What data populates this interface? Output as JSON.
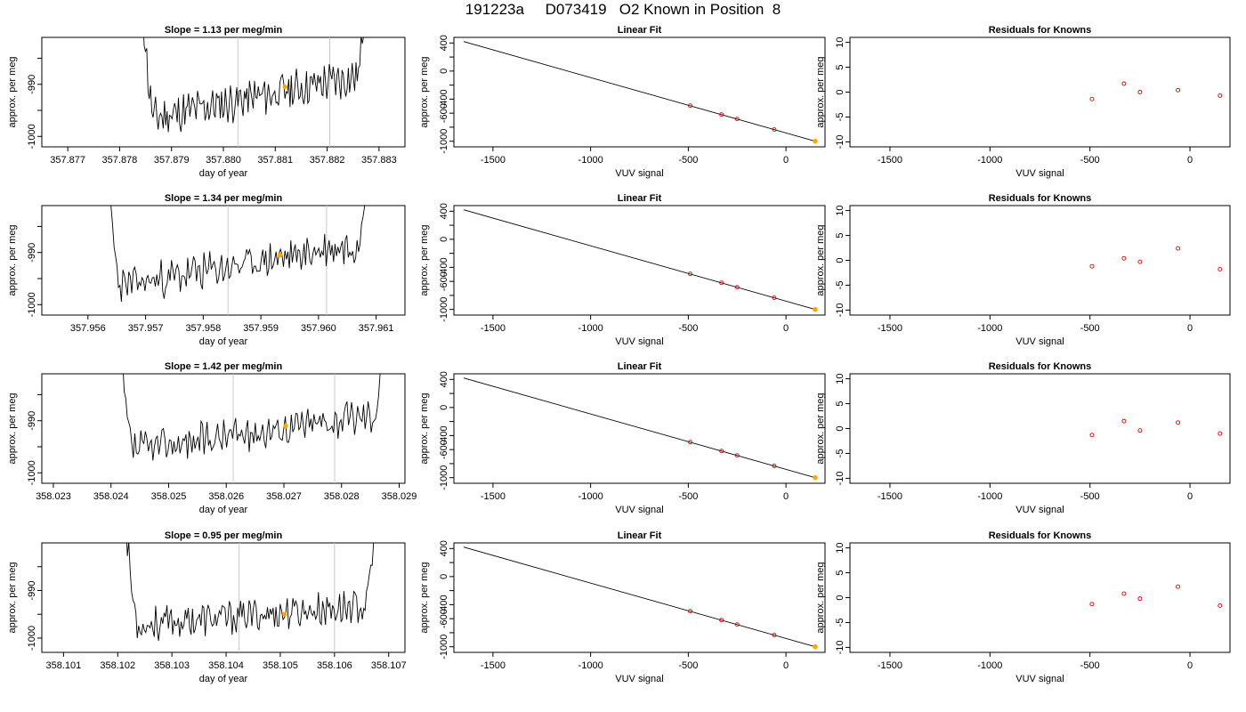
{
  "figure_title": "191223a     D073419   O2 Known in Position  8",
  "colors": {
    "trace": "#000000",
    "marker": "#ffa500",
    "residual": "#cc0000",
    "window_line": "#c8c8c8",
    "fit_line": "#000000"
  },
  "chart_data": [
    {
      "type": "line",
      "panel": "time-series",
      "row": 1,
      "title": "Slope =  1.13  per meg/min",
      "xlabel": "day of year",
      "ylabel": "approx. per meg",
      "xlim": [
        357.8765,
        357.8835
      ],
      "ylim": [
        -1002,
        -981
      ],
      "xticks": [
        357.877,
        357.878,
        357.879,
        357.88,
        357.881,
        357.882,
        357.883
      ],
      "xtick_labels": [
        "357.877",
        "357.878",
        "357.879",
        "357.880",
        "357.881",
        "357.882",
        "357.883"
      ],
      "yticks": [
        -1000,
        -995,
        -990,
        -985
      ],
      "ytick_labels": [
        "-1000",
        "",
        "-990",
        ""
      ],
      "series_x_range": [
        357.8784,
        357.8828
      ],
      "window_lines": [
        357.88028,
        357.88205
      ],
      "marker": [
        357.88119,
        -990.5
      ],
      "noise": {
        "start": -997,
        "end": -988,
        "amp": 3.2,
        "seed": 11
      }
    },
    {
      "type": "line",
      "panel": "linear-fit",
      "row": 1,
      "title": "Linear Fit",
      "xlabel": "VUV signal",
      "ylabel": "approx. per meg",
      "xlim": [
        -1700,
        200
      ],
      "ylim": [
        -1080,
        480
      ],
      "xticks": [
        -1500,
        -1000,
        -500,
        0
      ],
      "xtick_labels": [
        "-1500",
        "-1000",
        "-500",
        "0"
      ],
      "yticks": [
        -1000,
        -800,
        -600,
        -400,
        -200,
        0,
        200,
        400
      ],
      "ytick_labels": [
        "-1000",
        "",
        "-600",
        "-400",
        "",
        "0",
        "",
        "400"
      ],
      "fit_line": {
        "x": [
          -1650,
          150
        ],
        "y": [
          420,
          -1000
        ]
      },
      "points": {
        "x": [
          -490,
          -330,
          -250,
          -60,
          150
        ],
        "y": [
          -493,
          -620,
          -683,
          -833,
          -1000
        ]
      },
      "marker": [
        150,
        -1000
      ]
    },
    {
      "type": "scatter",
      "panel": "residuals",
      "row": 1,
      "title": "Residuals for Knowns",
      "xlabel": "VUV signal",
      "ylabel": "approx. per meg",
      "xlim": [
        -1700,
        200
      ],
      "ylim": [
        -11,
        11
      ],
      "xticks": [
        -1500,
        -1000,
        -500,
        0
      ],
      "xtick_labels": [
        "-1500",
        "-1000",
        "-500",
        "0"
      ],
      "yticks": [
        -10,
        -5,
        0,
        5,
        10
      ],
      "ytick_labels": [
        "-10",
        "-5",
        "0",
        "5",
        "10"
      ],
      "points": {
        "x": [
          -490,
          -330,
          -250,
          -60,
          150
        ],
        "y": [
          -1.4,
          1.7,
          0.0,
          0.4,
          -0.7
        ]
      }
    },
    {
      "type": "line",
      "panel": "time-series",
      "row": 2,
      "title": "Slope =  1.34  per meg/min",
      "xlabel": "day of year",
      "ylabel": "approx. per meg",
      "xlim": [
        357.9552,
        357.9615
      ],
      "ylim": [
        -1002,
        -981
      ],
      "xticks": [
        357.956,
        357.957,
        357.958,
        357.959,
        357.96,
        357.961
      ],
      "xtick_labels": [
        "357.956",
        "357.957",
        "357.958",
        "357.959",
        "357.960",
        "357.961"
      ],
      "yticks": [
        -1000,
        -995,
        -990,
        -985
      ],
      "ytick_labels": [
        "-1000",
        "",
        "-990",
        ""
      ],
      "series_x_range": [
        357.9563,
        357.9609
      ],
      "window_lines": [
        357.95843,
        357.96014
      ],
      "marker": [
        357.95933,
        -990.5
      ],
      "noise": {
        "start": -997,
        "end": -988,
        "amp": 3.0,
        "seed": 23
      }
    },
    {
      "type": "line",
      "panel": "linear-fit",
      "row": 2,
      "title": "Linear Fit",
      "xlabel": "VUV signal",
      "ylabel": "approx. per meg",
      "xlim": [
        -1700,
        200
      ],
      "ylim": [
        -1080,
        480
      ],
      "xticks": [
        -1500,
        -1000,
        -500,
        0
      ],
      "xtick_labels": [
        "-1500",
        "-1000",
        "-500",
        "0"
      ],
      "yticks": [
        -1000,
        -800,
        -600,
        -400,
        -200,
        0,
        200,
        400
      ],
      "ytick_labels": [
        "-1000",
        "",
        "-600",
        "-400",
        "",
        "0",
        "",
        "400"
      ],
      "fit_line": {
        "x": [
          -1650,
          150
        ],
        "y": [
          420,
          -1000
        ]
      },
      "points": {
        "x": [
          -490,
          -330,
          -250,
          -60,
          150
        ],
        "y": [
          -493,
          -620,
          -683,
          -833,
          -1000
        ]
      },
      "marker": [
        150,
        -1000
      ]
    },
    {
      "type": "scatter",
      "panel": "residuals",
      "row": 2,
      "title": "Residuals for Knowns",
      "xlabel": "VUV signal",
      "ylabel": "approx. per meg",
      "xlim": [
        -1700,
        200
      ],
      "ylim": [
        -11,
        11
      ],
      "xticks": [
        -1500,
        -1000,
        -500,
        0
      ],
      "xtick_labels": [
        "-1500",
        "-1000",
        "-500",
        "0"
      ],
      "yticks": [
        -10,
        -5,
        0,
        5,
        10
      ],
      "ytick_labels": [
        "-10",
        "-5",
        "0",
        "5",
        "10"
      ],
      "points": {
        "x": [
          -490,
          -330,
          -250,
          -60,
          150
        ],
        "y": [
          -1.2,
          0.4,
          -0.3,
          2.4,
          -1.8
        ]
      }
    },
    {
      "type": "line",
      "panel": "time-series",
      "row": 3,
      "title": "Slope =  1.42  per meg/min",
      "xlabel": "day of year",
      "ylabel": "approx. per meg",
      "xlim": [
        358.0228,
        358.0291
      ],
      "ylim": [
        -1002,
        -981
      ],
      "xticks": [
        358.023,
        358.024,
        358.025,
        358.026,
        358.027,
        358.028,
        358.029
      ],
      "xtick_labels": [
        "358.023",
        "358.024",
        "358.025",
        "358.026",
        "358.027",
        "358.028",
        "358.029"
      ],
      "yticks": [
        -1000,
        -995,
        -990,
        -985
      ],
      "ytick_labels": [
        "-1000",
        "",
        "-990",
        ""
      ],
      "series_x_range": [
        358.0241,
        358.0288
      ],
      "window_lines": [
        358.02612,
        358.02788
      ],
      "marker": [
        358.02703,
        -991
      ],
      "noise": {
        "start": -996,
        "end": -988.5,
        "amp": 2.8,
        "seed": 37
      }
    },
    {
      "type": "line",
      "panel": "linear-fit",
      "row": 3,
      "title": "Linear Fit",
      "xlabel": "VUV signal",
      "ylabel": "approx. per meg",
      "xlim": [
        -1700,
        200
      ],
      "ylim": [
        -1080,
        480
      ],
      "xticks": [
        -1500,
        -1000,
        -500,
        0
      ],
      "xtick_labels": [
        "-1500",
        "-1000",
        "-500",
        "0"
      ],
      "yticks": [
        -1000,
        -800,
        -600,
        -400,
        -200,
        0,
        200,
        400
      ],
      "ytick_labels": [
        "-1000",
        "",
        "-600",
        "-400",
        "",
        "0",
        "",
        "400"
      ],
      "fit_line": {
        "x": [
          -1650,
          150
        ],
        "y": [
          420,
          -1000
        ]
      },
      "points": {
        "x": [
          -490,
          -330,
          -250,
          -60,
          150
        ],
        "y": [
          -493,
          -620,
          -683,
          -833,
          -1000
        ]
      },
      "marker": [
        150,
        -1000
      ]
    },
    {
      "type": "scatter",
      "panel": "residuals",
      "row": 3,
      "title": "Residuals for Knowns",
      "xlabel": "VUV signal",
      "ylabel": "approx. per meg",
      "xlim": [
        -1700,
        200
      ],
      "ylim": [
        -11,
        11
      ],
      "xticks": [
        -1500,
        -1000,
        -500,
        0
      ],
      "xtick_labels": [
        "-1500",
        "-1000",
        "-500",
        "0"
      ],
      "yticks": [
        -10,
        -5,
        0,
        5,
        10
      ],
      "ytick_labels": [
        "-10",
        "-5",
        "0",
        "5",
        "10"
      ],
      "points": {
        "x": [
          -490,
          -330,
          -250,
          -60,
          150
        ],
        "y": [
          -1.3,
          1.5,
          -0.4,
          1.2,
          -1.0
        ]
      }
    },
    {
      "type": "line",
      "panel": "time-series",
      "row": 4,
      "title": "Slope =  0.95  per meg/min",
      "xlabel": "day of year",
      "ylabel": "approx. per meg",
      "xlim": [
        358.1006,
        358.1073
      ],
      "ylim": [
        -1003,
        -980
      ],
      "xticks": [
        358.101,
        358.102,
        358.103,
        358.104,
        358.105,
        358.106,
        358.107
      ],
      "xtick_labels": [
        "358.101",
        "358.102",
        "358.103",
        "358.104",
        "358.105",
        "358.106",
        "358.107"
      ],
      "yticks": [
        -1000,
        -995,
        -990,
        -985
      ],
      "ytick_labels": [
        "-1000",
        "",
        "-990",
        ""
      ],
      "series_x_range": [
        358.1021,
        358.1068
      ],
      "window_lines": [
        358.10424,
        358.106
      ],
      "marker": [
        358.10508,
        -995
      ],
      "noise": {
        "start": -997.5,
        "end": -993,
        "amp": 3.0,
        "seed": 53
      }
    },
    {
      "type": "line",
      "panel": "linear-fit",
      "row": 4,
      "title": "Linear Fit",
      "xlabel": "VUV signal",
      "ylabel": "approx. per meg",
      "xlim": [
        -1700,
        200
      ],
      "ylim": [
        -1080,
        480
      ],
      "xticks": [
        -1500,
        -1000,
        -500,
        0
      ],
      "xtick_labels": [
        "-1500",
        "-1000",
        "-500",
        "0"
      ],
      "yticks": [
        -1000,
        -800,
        -600,
        -400,
        -200,
        0,
        200,
        400
      ],
      "ytick_labels": [
        "-1000",
        "",
        "-600",
        "-400",
        "",
        "0",
        "",
        "400"
      ],
      "fit_line": {
        "x": [
          -1650,
          150
        ],
        "y": [
          420,
          -1000
        ]
      },
      "points": {
        "x": [
          -490,
          -330,
          -250,
          -60,
          150
        ],
        "y": [
          -493,
          -620,
          -683,
          -833,
          -1000
        ]
      },
      "marker": [
        150,
        -1000
      ]
    },
    {
      "type": "scatter",
      "panel": "residuals",
      "row": 4,
      "title": "Residuals for Knowns",
      "xlabel": "VUV signal",
      "ylabel": "approx. per meg",
      "xlim": [
        -1700,
        200
      ],
      "ylim": [
        -11,
        11
      ],
      "xticks": [
        -1500,
        -1000,
        -500,
        0
      ],
      "xtick_labels": [
        "-1500",
        "-1000",
        "-500",
        "0"
      ],
      "yticks": [
        -10,
        -5,
        0,
        5,
        10
      ],
      "ytick_labels": [
        "-10",
        "-5",
        "0",
        "5",
        "10"
      ],
      "points": {
        "x": [
          -490,
          -330,
          -250,
          -60,
          150
        ],
        "y": [
          -1.3,
          0.8,
          -0.2,
          2.2,
          -1.6
        ]
      }
    }
  ]
}
